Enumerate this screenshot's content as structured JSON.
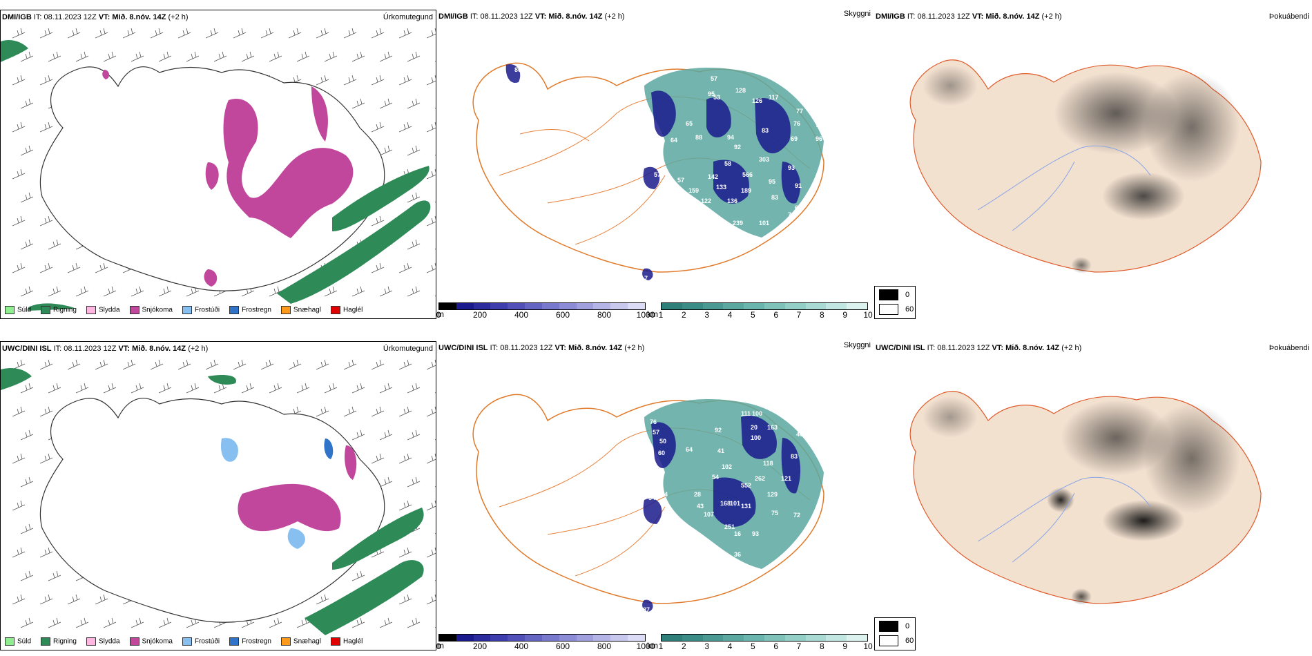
{
  "rows": [
    {
      "precip": {
        "model": "DMI/IGB",
        "it": "IT: 08.11.2023 12Z",
        "vt": "VT: Mið. 8.nóv. 14Z",
        "lead": "(+2 h)",
        "title": "Úrkomutegund"
      },
      "cloud": {
        "model": "DMI/IGB",
        "it": "IT: 08.11.2023 12Z",
        "vt": "VT: Mið. 8.nóv. 14Z",
        "lead": "(+2 h)",
        "title": "Skyggni",
        "labels": [
          "86",
          "57",
          "53",
          "95",
          "128",
          "126",
          "117",
          "77",
          "76",
          "75",
          "96",
          "69",
          "88",
          "94",
          "92",
          "83",
          "58",
          "64",
          "65",
          "57",
          "142",
          "566",
          "303",
          "93",
          "133",
          "189",
          "95",
          "159",
          "122",
          "136",
          "91",
          "83",
          "62",
          "239",
          "101",
          "82",
          "71",
          "18",
          "57",
          "7"
        ]
      },
      "fog": {
        "model": "DMI/IGB",
        "it": "IT: 08.11.2023 12Z",
        "vt": "VT: Mið. 8.nóv. 14Z",
        "lead": "(+2 h)",
        "title": "Þokuábendi"
      }
    },
    {
      "precip": {
        "model": "UWC/DINI ISL",
        "it": "IT: 08.11.2023 12Z",
        "vt": "VT: Mið. 8.nóv. 14Z",
        "lead": "(+2 h)",
        "title": "Úrkomutegund"
      },
      "cloud": {
        "model": "UWC/DINI ISL",
        "it": "IT: 08.11.2023 12Z",
        "vt": "VT: Mið. 8.nóv. 14Z",
        "lead": "(+2 h)",
        "title": "Skyggni",
        "labels": [
          "111",
          "100",
          "76",
          "57",
          "50",
          "60",
          "92",
          "20",
          "100",
          "163",
          "46",
          "48",
          "64",
          "41",
          "102",
          "83",
          "118",
          "54",
          "262",
          "121",
          "54",
          "28",
          "552",
          "129",
          "43",
          "107",
          "168",
          "101",
          "131",
          "75",
          "251",
          "93",
          "72",
          "36",
          "54",
          "87",
          "16"
        ]
      },
      "fog": {
        "model": "UWC/DINI ISL",
        "it": "IT: 08.11.2023 12Z",
        "vt": "VT: Mið. 8.nóv. 14Z",
        "lead": "(+2 h)",
        "title": "Þokuábendi"
      }
    }
  ],
  "precip_legend": [
    {
      "label": "Súld",
      "color": "#90ee90"
    },
    {
      "label": "Rigning",
      "color": "#2e8b57"
    },
    {
      "label": "Slydda",
      "color": "#ffb6e1"
    },
    {
      "label": "Snjókoma",
      "color": "#c0479c"
    },
    {
      "label": "Frostúði",
      "color": "#87bff0"
    },
    {
      "label": "Frostregn",
      "color": "#2f74c8"
    },
    {
      "label": "Snæhagl",
      "color": "#ff9a1a"
    },
    {
      "label": "Haglél",
      "color": "#e00000"
    }
  ],
  "height_scale": {
    "unit": "m",
    "ticks": [
      "0",
      "200",
      "400",
      "600",
      "800",
      "1000"
    ],
    "colors": [
      "#000000",
      "#1a1a8c",
      "#2b2b9e",
      "#3d3dae",
      "#5050b8",
      "#6464c2",
      "#7878cc",
      "#8c8cd6",
      "#a0a0de",
      "#b4b4e6",
      "#c8c8ee",
      "#dcdcf6"
    ]
  },
  "visibility_scale": {
    "unit": "km",
    "ticks": [
      "1",
      "2",
      "3",
      "4",
      "5",
      "6",
      "7",
      "8",
      "9",
      "10"
    ],
    "colors": [
      "#2e7f7a",
      "#3a8c86",
      "#4a9a93",
      "#5aa8a0",
      "#6ab5ad",
      "#7ec2ba",
      "#93cec7",
      "#aadad4",
      "#c2e6e1",
      "#dcf2ef"
    ]
  },
  "fog_legend": [
    {
      "label": "0",
      "color": "#000000"
    },
    {
      "label": "60",
      "color": "#ffffff"
    }
  ]
}
